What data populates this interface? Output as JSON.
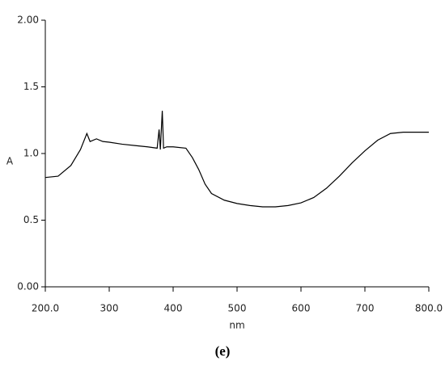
{
  "chart_data": {
    "type": "line",
    "x_label": "nm",
    "y_label": "A",
    "caption": "(e)",
    "x": [
      200,
      220,
      240,
      255,
      265,
      270,
      280,
      290,
      300,
      320,
      340,
      360,
      375,
      378,
      380,
      383,
      385,
      390,
      400,
      420,
      430,
      440,
      450,
      460,
      480,
      500,
      520,
      540,
      560,
      580,
      600,
      620,
      640,
      660,
      680,
      700,
      720,
      740,
      760,
      780,
      800
    ],
    "values": [
      0.82,
      0.83,
      0.91,
      1.03,
      1.15,
      1.09,
      1.11,
      1.09,
      1.085,
      1.07,
      1.06,
      1.05,
      1.04,
      1.18,
      1.03,
      1.32,
      1.04,
      1.05,
      1.05,
      1.04,
      0.97,
      0.88,
      0.77,
      0.7,
      0.65,
      0.625,
      0.61,
      0.6,
      0.6,
      0.61,
      0.63,
      0.67,
      0.74,
      0.83,
      0.93,
      1.02,
      1.1,
      1.15,
      1.16,
      1.16,
      1.16
    ],
    "color": "#000000",
    "xlim": [
      200,
      800
    ],
    "xticks": [
      {
        "value": 200,
        "label": "200.0"
      },
      300,
      400,
      500,
      600,
      700,
      {
        "value": 800,
        "label": "800.0"
      }
    ],
    "ylim": [
      0,
      2
    ],
    "yticks": [
      {
        "value": 0,
        "label": "0.00"
      },
      0.5,
      {
        "value": 1,
        "label": "1.0"
      },
      1.5,
      {
        "value": 2,
        "label": "2.00"
      }
    ]
  }
}
